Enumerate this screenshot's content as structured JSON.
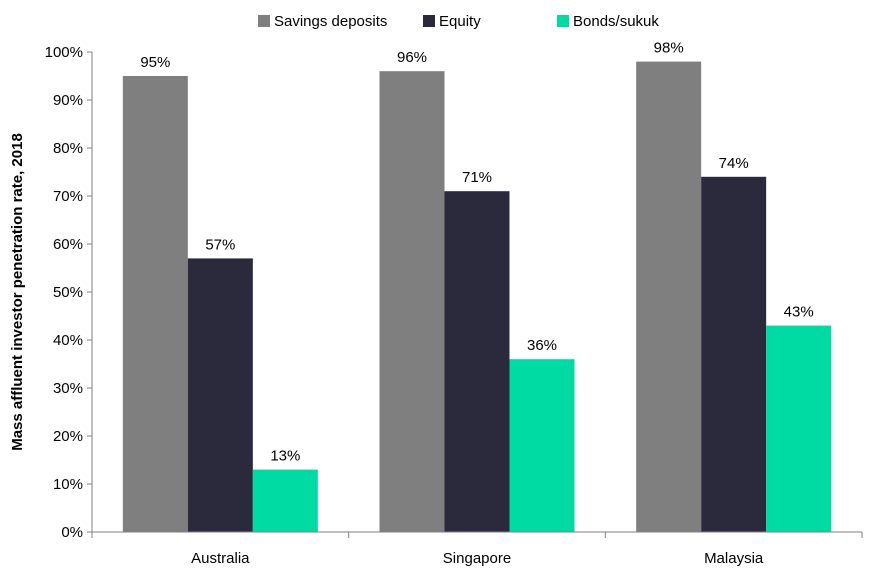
{
  "chart_data": {
    "type": "bar",
    "title": "",
    "xlabel": "",
    "ylabel": "Mass affluent investor penetration rate, 2018",
    "categories": [
      "Australia",
      "Singapore",
      "Malaysia"
    ],
    "series": [
      {
        "name": "Savings deposits",
        "color": "#7f7f7f",
        "values": [
          95,
          96,
          98
        ]
      },
      {
        "name": "Equity",
        "color": "#2b2a3d",
        "values": [
          57,
          71,
          74
        ]
      },
      {
        "name": "Bonds/sukuk",
        "color": "#00dba3",
        "values": [
          13,
          36,
          43
        ]
      }
    ],
    "ylim": [
      0,
      100
    ],
    "yticks": [
      0,
      10,
      20,
      30,
      40,
      50,
      60,
      70,
      80,
      90,
      100
    ],
    "value_suffix": "%",
    "legend_position": "top",
    "grid": false
  }
}
